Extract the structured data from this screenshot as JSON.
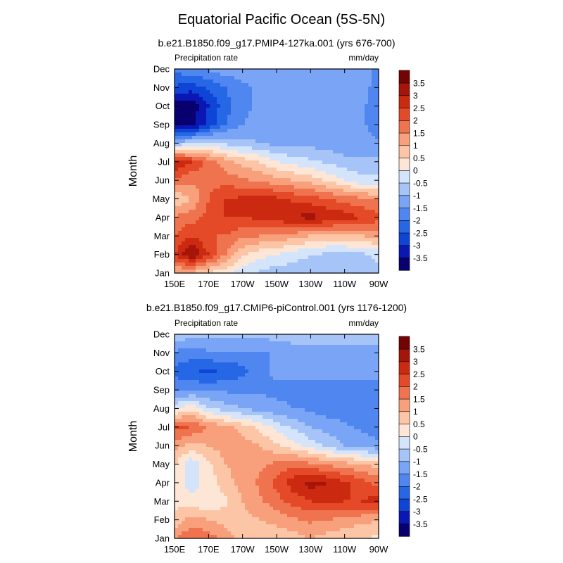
{
  "figure": {
    "title": "Equatorial Pacific Ocean (5S-5N)"
  },
  "chart_data": [
    {
      "type": "heatmap",
      "title": "b.e21.B1850.f09_g17.PMIP4-127ka.001 (yrs 676-700)",
      "variable_label": "Precipitation rate",
      "units_label": "mm/day",
      "ylabel": "Month",
      "xlabel": "",
      "x_ticks": [
        "150E",
        "170E",
        "170W",
        "150W",
        "130W",
        "110W",
        "90W"
      ],
      "x_tick_lons": [
        150,
        170,
        190,
        210,
        230,
        250,
        270
      ],
      "xlim": [
        150,
        270
      ],
      "y_ticks": [
        "Jan",
        "Feb",
        "Mar",
        "Apr",
        "May",
        "Jun",
        "Jul",
        "Aug",
        "Sep",
        "Oct",
        "Nov",
        "Dec"
      ],
      "lons": [
        150,
        160,
        170,
        180,
        190,
        200,
        210,
        220,
        230,
        240,
        250,
        260,
        270
      ],
      "values": [
        [
          1.0,
          0.8,
          0.4,
          0.2,
          -0.4,
          -0.6,
          -0.8,
          -0.8,
          -0.7,
          -0.6,
          -0.6,
          -0.6,
          -0.6
        ],
        [
          2.5,
          3.6,
          2.5,
          1.5,
          0.6,
          0.2,
          0.0,
          -0.3,
          -0.5,
          -0.6,
          -0.6,
          -0.6,
          -0.4
        ],
        [
          2.0,
          2.5,
          2.0,
          2.0,
          1.6,
          1.5,
          1.4,
          1.2,
          1.0,
          0.8,
          0.8,
          1.0,
          1.2
        ],
        [
          1.6,
          1.8,
          2.2,
          2.5,
          2.5,
          2.6,
          2.8,
          3.0,
          3.2,
          3.0,
          2.8,
          2.5,
          2.2
        ],
        [
          0.5,
          1.0,
          2.0,
          2.5,
          2.6,
          2.8,
          2.6,
          2.4,
          2.2,
          2.0,
          1.8,
          1.6,
          1.4
        ],
        [
          2.0,
          1.6,
          1.8,
          1.8,
          1.6,
          1.4,
          1.2,
          1.0,
          0.8,
          0.4,
          0.0,
          -0.4,
          -0.4
        ],
        [
          3.0,
          2.5,
          1.8,
          1.2,
          0.8,
          0.5,
          0.0,
          -0.2,
          -0.4,
          -0.6,
          -0.8,
          -0.8,
          -0.8
        ],
        [
          -1.0,
          -0.5,
          -0.4,
          -0.6,
          -0.8,
          -1.0,
          -1.2,
          -1.2,
          -1.2,
          -1.2,
          -1.4,
          -1.4,
          -1.4
        ],
        [
          -3.6,
          -3.8,
          -2.8,
          -2.0,
          -1.5,
          -1.4,
          -1.4,
          -1.4,
          -1.4,
          -1.4,
          -1.4,
          -1.4,
          -1.8
        ],
        [
          -3.8,
          -3.8,
          -3.0,
          -2.2,
          -1.6,
          -1.4,
          -1.4,
          -1.4,
          -1.4,
          -1.4,
          -1.4,
          -1.4,
          -1.8
        ],
        [
          -2.6,
          -2.8,
          -2.4,
          -2.0,
          -1.6,
          -1.4,
          -1.4,
          -1.4,
          -1.4,
          -1.4,
          -1.4,
          -1.4,
          -1.6
        ],
        [
          -1.8,
          -1.6,
          -1.4,
          -1.2,
          -1.2,
          -1.2,
          -1.2,
          -1.2,
          -1.2,
          -1.2,
          -1.2,
          -1.4,
          -1.6
        ]
      ],
      "colorbar": {
        "labels": [
          "3.5",
          "3",
          "2.5",
          "2",
          "1.5",
          "1",
          "0.5",
          "0",
          "-0.5",
          "-1",
          "-1.5",
          "-2",
          "-2.5",
          "-3",
          "-3.5"
        ],
        "levels": [
          -3.5,
          -3,
          -2.5,
          -2,
          -1.5,
          -1,
          -0.5,
          0,
          0.5,
          1,
          1.5,
          2,
          2.5,
          3,
          3.5
        ],
        "colors": [
          "#08006e",
          "#0b17b5",
          "#0f45d6",
          "#2667e6",
          "#4f86ef",
          "#7aa4f5",
          "#a7c4f8",
          "#d4e4fb",
          "#fde6d6",
          "#fcc6a6",
          "#f8a07b",
          "#f07350",
          "#e44a27",
          "#cc2a10",
          "#a6150a",
          "#740404"
        ]
      }
    },
    {
      "type": "heatmap",
      "title": "b.e21.B1850.f09_g17.CMIP6-piControl.001 (yrs 1176-1200)",
      "variable_label": "Precipitation rate",
      "units_label": "mm/day",
      "ylabel": "Month",
      "xlabel": "",
      "x_ticks": [
        "150E",
        "170E",
        "170W",
        "150W",
        "130W",
        "110W",
        "90W"
      ],
      "x_tick_lons": [
        150,
        170,
        190,
        210,
        230,
        250,
        270
      ],
      "xlim": [
        150,
        270
      ],
      "y_ticks": [
        "Jan",
        "Feb",
        "Mar",
        "Apr",
        "May",
        "Jun",
        "Jul",
        "Aug",
        "Sep",
        "Oct",
        "Nov",
        "Dec"
      ],
      "lons": [
        150,
        160,
        170,
        180,
        190,
        200,
        210,
        220,
        230,
        240,
        250,
        260,
        270
      ],
      "values": [
        [
          1.5,
          2.0,
          1.8,
          1.2,
          0.8,
          0.6,
          0.6,
          0.8,
          1.0,
          0.8,
          0.6,
          0.5,
          0.4
        ],
        [
          0.6,
          1.2,
          1.0,
          0.8,
          0.8,
          1.0,
          1.2,
          1.4,
          1.6,
          1.5,
          1.3,
          1.2,
          1.0
        ],
        [
          0.4,
          0.2,
          0.0,
          0.4,
          1.0,
          1.4,
          1.8,
          2.2,
          2.5,
          2.6,
          2.5,
          2.5,
          2.8
        ],
        [
          0.2,
          -0.2,
          0.2,
          0.8,
          1.2,
          1.6,
          2.2,
          2.8,
          3.2,
          3.0,
          2.6,
          2.2,
          1.8
        ],
        [
          0.6,
          -0.4,
          0.4,
          1.0,
          1.2,
          1.4,
          1.6,
          1.8,
          1.6,
          1.4,
          1.2,
          1.0,
          0.8
        ],
        [
          1.2,
          0.8,
          1.0,
          1.2,
          1.2,
          1.0,
          0.6,
          0.2,
          -0.2,
          -0.6,
          -1.0,
          -1.2,
          -1.4
        ],
        [
          2.2,
          2.0,
          1.4,
          1.2,
          0.8,
          0.4,
          -0.2,
          -0.6,
          -1.0,
          -1.2,
          -1.4,
          -1.6,
          -1.8
        ],
        [
          -0.2,
          0.4,
          -0.4,
          -0.8,
          -1.0,
          -1.2,
          -1.4,
          -1.5,
          -1.6,
          -1.8,
          -1.8,
          -1.8,
          -1.8
        ],
        [
          -1.6,
          -1.6,
          -1.6,
          -1.6,
          -1.6,
          -1.6,
          -1.6,
          -1.6,
          -1.6,
          -1.6,
          -1.6,
          -1.6,
          -1.6
        ],
        [
          -2.2,
          -2.4,
          -2.6,
          -2.4,
          -2.2,
          -1.6,
          -1.4,
          -1.4,
          -1.4,
          -1.4,
          -1.4,
          -1.4,
          -1.4
        ],
        [
          -1.6,
          -1.8,
          -1.6,
          -1.6,
          -1.6,
          -1.6,
          -1.4,
          -1.2,
          -1.2,
          -1.2,
          -1.2,
          -1.2,
          -1.2
        ],
        [
          -0.6,
          -0.8,
          -0.8,
          -0.8,
          -0.8,
          -0.8,
          -0.8,
          -0.8,
          -0.8,
          -0.8,
          -0.8,
          -0.8,
          -0.8
        ]
      ],
      "colorbar": {
        "labels": [
          "3.5",
          "3",
          "2.5",
          "2",
          "1.5",
          "1",
          "0.5",
          "0",
          "-0.5",
          "-1",
          "-1.5",
          "-2",
          "-2.5",
          "-3",
          "-3.5"
        ],
        "levels": [
          -3.5,
          -3,
          -2.5,
          -2,
          -1.5,
          -1,
          -0.5,
          0,
          0.5,
          1,
          1.5,
          2,
          2.5,
          3,
          3.5
        ],
        "colors": [
          "#08006e",
          "#0b17b5",
          "#0f45d6",
          "#2667e6",
          "#4f86ef",
          "#7aa4f5",
          "#a7c4f8",
          "#d4e4fb",
          "#fde6d6",
          "#fcc6a6",
          "#f8a07b",
          "#f07350",
          "#e44a27",
          "#cc2a10",
          "#a6150a",
          "#740404"
        ]
      }
    }
  ]
}
